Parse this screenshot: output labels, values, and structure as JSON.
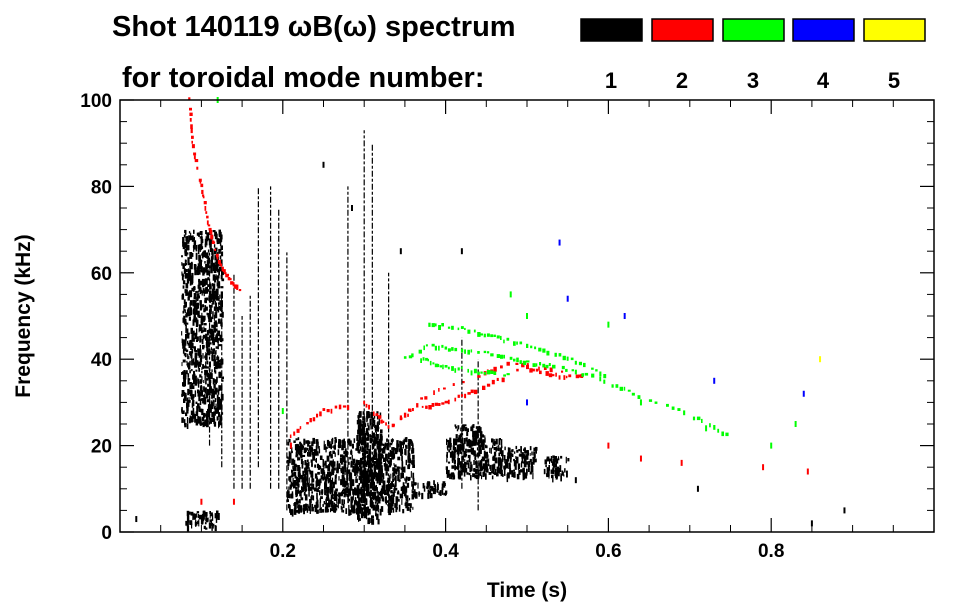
{
  "chart_data": {
    "type": "heatmap",
    "title_line1": "Shot 140119 ωB(ω) spectrum",
    "title_line2": "for toroidal mode number:",
    "xlabel": "Time (s)",
    "ylabel": "Frequency (kHz)",
    "xlim": [
      0.0,
      1.0
    ],
    "ylim": [
      0,
      100
    ],
    "x_ticks": [
      0.2,
      0.4,
      0.6,
      0.8
    ],
    "x_tick_labels": [
      "0.2",
      "0.4",
      "0.6",
      "0.8"
    ],
    "y_ticks": [
      0,
      20,
      40,
      60,
      80,
      100
    ],
    "y_tick_labels": [
      "0",
      "20",
      "40",
      "60",
      "80",
      "100"
    ],
    "legend": [
      {
        "label": "1",
        "color": "#000000"
      },
      {
        "label": "2",
        "color": "#ff0000"
      },
      {
        "label": "3",
        "color": "#00ff00"
      },
      {
        "label": "4",
        "color": "#0000ff"
      },
      {
        "label": "5",
        "color": "#ffff00"
      }
    ],
    "grid": false,
    "series": [
      {
        "mode": 1,
        "color": "#000000",
        "regions": [
          {
            "t": [
              0.075,
              0.125
            ],
            "f": [
              25,
              70
            ]
          },
          {
            "t": [
              0.205,
              0.36
            ],
            "f": [
              5,
              22
            ]
          },
          {
            "t": [
              0.29,
              0.32
            ],
            "f": [
              3,
              28
            ]
          },
          {
            "t": [
              0.36,
              0.4
            ],
            "f": [
              9,
              12
            ]
          },
          {
            "t": [
              0.4,
              0.47
            ],
            "f": [
              13,
              22
            ]
          },
          {
            "t": [
              0.41,
              0.45
            ],
            "f": [
              21,
              25
            ]
          },
          {
            "t": [
              0.47,
              0.51
            ],
            "f": [
              13,
              20
            ]
          },
          {
            "t": [
              0.52,
              0.55
            ],
            "f": [
              13,
              18
            ]
          },
          {
            "t": [
              0.08,
              0.12
            ],
            "f": [
              1,
              5
            ]
          }
        ],
        "lines": [
          {
            "t": 0.11,
            "f": [
              20,
              65
            ]
          },
          {
            "t": 0.125,
            "f": [
              15,
              55
            ]
          },
          {
            "t": 0.14,
            "f": [
              10,
              60
            ]
          },
          {
            "t": 0.15,
            "f": [
              10,
              50
            ]
          },
          {
            "t": 0.16,
            "f": [
              10,
              55
            ]
          },
          {
            "t": 0.17,
            "f": [
              15,
              80
            ]
          },
          {
            "t": 0.185,
            "f": [
              10,
              80
            ]
          },
          {
            "t": 0.195,
            "f": [
              10,
              75
            ]
          },
          {
            "t": 0.205,
            "f": [
              5,
              65
            ]
          },
          {
            "t": 0.3,
            "f": [
              5,
              93
            ]
          },
          {
            "t": 0.31,
            "f": [
              10,
              90
            ]
          },
          {
            "t": 0.28,
            "f": [
              10,
              80
            ]
          },
          {
            "t": 0.33,
            "f": [
              5,
              60
            ]
          },
          {
            "t": 0.42,
            "f": [
              10,
              45
            ]
          },
          {
            "t": 0.44,
            "f": [
              5,
              40
            ]
          }
        ],
        "points": [
          {
            "t": 0.02,
            "f": 3
          },
          {
            "t": 0.25,
            "f": 85
          },
          {
            "t": 0.285,
            "f": 75
          },
          {
            "t": 0.42,
            "f": 65
          },
          {
            "t": 0.345,
            "f": 65
          },
          {
            "t": 0.85,
            "f": 2
          },
          {
            "t": 0.89,
            "f": 5
          },
          {
            "t": 0.71,
            "f": 10
          },
          {
            "t": 0.56,
            "f": 12
          }
        ]
      },
      {
        "mode": 2,
        "color": "#ff0000",
        "curves": [
          {
            "t": [
              0.085,
              0.09,
              0.1,
              0.11,
              0.12,
              0.135,
              0.15
            ],
            "f": [
              100,
              88,
              80,
              70,
              63,
              58,
              55
            ]
          },
          {
            "t": [
              0.21,
              0.25,
              0.3,
              0.33,
              0.36,
              0.4,
              0.44,
              0.5,
              0.54,
              0.57
            ],
            "f": [
              22,
              28,
              30,
              24,
              28,
              30,
              33,
              38,
              36,
              36
            ]
          },
          {
            "t": [
              0.33,
              0.38,
              0.44,
              0.48,
              0.55
            ],
            "f": [
              24,
              32,
              36,
              39,
              37
            ]
          }
        ],
        "points": [
          {
            "t": 0.1,
            "f": 7
          },
          {
            "t": 0.14,
            "f": 7
          },
          {
            "t": 0.6,
            "f": 20
          },
          {
            "t": 0.64,
            "f": 17
          },
          {
            "t": 0.69,
            "f": 16
          },
          {
            "t": 0.79,
            "f": 15
          },
          {
            "t": 0.845,
            "f": 14
          },
          {
            "t": 0.21,
            "f": 20
          }
        ]
      },
      {
        "mode": 3,
        "color": "#00ff00",
        "curves": [
          {
            "t": [
              0.35,
              0.38,
              0.42,
              0.46,
              0.5,
              0.54,
              0.58,
              0.63,
              0.7,
              0.75
            ],
            "f": [
              40,
              43,
              42,
              41,
              39,
              38,
              36,
              32,
              27,
              22
            ]
          },
          {
            "t": [
              0.38,
              0.42,
              0.46,
              0.5,
              0.55,
              0.6
            ],
            "f": [
              48,
              47,
              45,
              43,
              40,
              36
            ]
          },
          {
            "t": [
              0.37,
              0.4,
              0.44,
              0.48
            ],
            "f": [
              40,
              38,
              37,
              36
            ]
          }
        ],
        "points": [
          {
            "t": 0.48,
            "f": 55
          },
          {
            "t": 0.5,
            "f": 50
          },
          {
            "t": 0.6,
            "f": 48
          },
          {
            "t": 0.64,
            "f": 30
          },
          {
            "t": 0.72,
            "f": 24
          },
          {
            "t": 0.8,
            "f": 20
          },
          {
            "t": 0.83,
            "f": 25
          },
          {
            "t": 0.2,
            "f": 28
          },
          {
            "t": 0.12,
            "f": 100
          }
        ]
      },
      {
        "mode": 4,
        "color": "#0000ff",
        "points": [
          {
            "t": 0.54,
            "f": 67
          },
          {
            "t": 0.55,
            "f": 54
          },
          {
            "t": 0.62,
            "f": 50
          },
          {
            "t": 0.73,
            "f": 35
          },
          {
            "t": 0.84,
            "f": 32
          },
          {
            "t": 0.5,
            "f": 30
          }
        ]
      },
      {
        "mode": 5,
        "color": "#ffff00",
        "points": [
          {
            "t": 0.86,
            "f": 40
          }
        ]
      }
    ]
  }
}
